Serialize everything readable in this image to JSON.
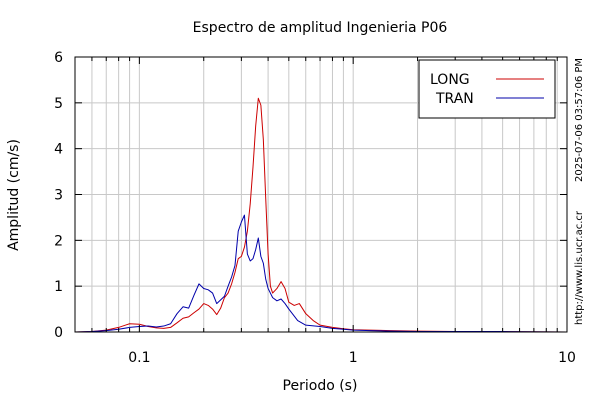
{
  "chart_data": {
    "type": "line",
    "title": "Espectro de amplitud Ingenieria P06",
    "xlabel": "Periodo (s)",
    "ylabel": "Amplitud (cm/s)",
    "x_scale": "log",
    "xlim": [
      0.05,
      10
    ],
    "ylim": [
      0,
      6
    ],
    "x_ticks": [
      0.1,
      1,
      10
    ],
    "x_tick_labels": [
      "0.1",
      "1",
      "10"
    ],
    "y_ticks": [
      0,
      1,
      2,
      3,
      4,
      5,
      6
    ],
    "y_tick_labels": [
      "0",
      "1",
      "2",
      "3",
      "4",
      "5",
      "6"
    ],
    "grid": true,
    "legend_position": "top-right",
    "timestamp": "2025-07-06 03:57:06 PM",
    "url": "http://www.lis.ucr.ac.cr",
    "series": [
      {
        "name": "LONG",
        "color": "#cc0000",
        "points": [
          [
            0.05,
            0.0
          ],
          [
            0.06,
            0.01
          ],
          [
            0.07,
            0.04
          ],
          [
            0.08,
            0.1
          ],
          [
            0.09,
            0.18
          ],
          [
            0.1,
            0.17
          ],
          [
            0.11,
            0.12
          ],
          [
            0.12,
            0.09
          ],
          [
            0.13,
            0.08
          ],
          [
            0.14,
            0.1
          ],
          [
            0.15,
            0.2
          ],
          [
            0.16,
            0.3
          ],
          [
            0.17,
            0.33
          ],
          [
            0.18,
            0.42
          ],
          [
            0.19,
            0.5
          ],
          [
            0.2,
            0.62
          ],
          [
            0.21,
            0.58
          ],
          [
            0.22,
            0.5
          ],
          [
            0.23,
            0.38
          ],
          [
            0.24,
            0.52
          ],
          [
            0.25,
            0.75
          ],
          [
            0.26,
            0.85
          ],
          [
            0.27,
            1.05
          ],
          [
            0.28,
            1.3
          ],
          [
            0.29,
            1.6
          ],
          [
            0.3,
            1.65
          ],
          [
            0.31,
            1.85
          ],
          [
            0.32,
            2.2
          ],
          [
            0.33,
            2.8
          ],
          [
            0.34,
            3.6
          ],
          [
            0.35,
            4.5
          ],
          [
            0.36,
            5.1
          ],
          [
            0.37,
            4.95
          ],
          [
            0.38,
            4.2
          ],
          [
            0.39,
            2.9
          ],
          [
            0.4,
            1.7
          ],
          [
            0.41,
            1.0
          ],
          [
            0.42,
            0.85
          ],
          [
            0.44,
            0.95
          ],
          [
            0.46,
            1.1
          ],
          [
            0.48,
            0.95
          ],
          [
            0.5,
            0.65
          ],
          [
            0.53,
            0.58
          ],
          [
            0.56,
            0.62
          ],
          [
            0.6,
            0.4
          ],
          [
            0.65,
            0.25
          ],
          [
            0.7,
            0.15
          ],
          [
            0.8,
            0.1
          ],
          [
            0.9,
            0.07
          ],
          [
            1.0,
            0.05
          ],
          [
            1.2,
            0.04
          ],
          [
            1.5,
            0.03
          ],
          [
            2.0,
            0.02
          ],
          [
            3.0,
            0.01
          ],
          [
            5.0,
            0.01
          ],
          [
            10.0,
            0.0
          ]
        ]
      },
      {
        "name": "TRAN",
        "color": "#0000aa",
        "points": [
          [
            0.05,
            0.0
          ],
          [
            0.06,
            0.01
          ],
          [
            0.07,
            0.03
          ],
          [
            0.08,
            0.06
          ],
          [
            0.09,
            0.1
          ],
          [
            0.1,
            0.12
          ],
          [
            0.11,
            0.13
          ],
          [
            0.12,
            0.11
          ],
          [
            0.13,
            0.13
          ],
          [
            0.14,
            0.18
          ],
          [
            0.15,
            0.4
          ],
          [
            0.16,
            0.55
          ],
          [
            0.17,
            0.52
          ],
          [
            0.18,
            0.8
          ],
          [
            0.19,
            1.05
          ],
          [
            0.2,
            0.95
          ],
          [
            0.21,
            0.92
          ],
          [
            0.22,
            0.85
          ],
          [
            0.23,
            0.62
          ],
          [
            0.24,
            0.7
          ],
          [
            0.25,
            0.78
          ],
          [
            0.26,
            1.0
          ],
          [
            0.27,
            1.2
          ],
          [
            0.28,
            1.45
          ],
          [
            0.29,
            2.2
          ],
          [
            0.3,
            2.4
          ],
          [
            0.31,
            2.55
          ],
          [
            0.32,
            1.7
          ],
          [
            0.33,
            1.55
          ],
          [
            0.34,
            1.6
          ],
          [
            0.35,
            1.8
          ],
          [
            0.36,
            2.05
          ],
          [
            0.37,
            1.65
          ],
          [
            0.38,
            1.5
          ],
          [
            0.39,
            1.15
          ],
          [
            0.4,
            0.95
          ],
          [
            0.42,
            0.75
          ],
          [
            0.44,
            0.68
          ],
          [
            0.46,
            0.72
          ],
          [
            0.48,
            0.62
          ],
          [
            0.5,
            0.5
          ],
          [
            0.55,
            0.25
          ],
          [
            0.6,
            0.15
          ],
          [
            0.7,
            0.12
          ],
          [
            0.8,
            0.08
          ],
          [
            0.9,
            0.06
          ],
          [
            1.0,
            0.04
          ],
          [
            1.2,
            0.03
          ],
          [
            1.5,
            0.02
          ],
          [
            2.0,
            0.01
          ],
          [
            5.0,
            0.01
          ],
          [
            10.0,
            0.0
          ]
        ]
      }
    ]
  }
}
